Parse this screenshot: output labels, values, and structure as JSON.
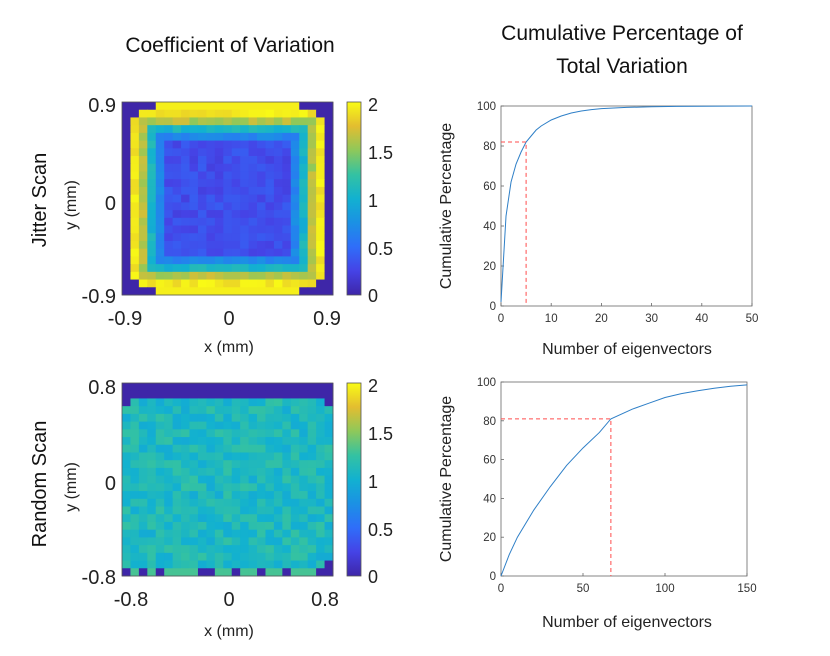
{
  "titles": {
    "left": "Coefficient of Variation",
    "right_line1": "Cumulative Percentage of",
    "right_line2": "Total Variation"
  },
  "row_labels": {
    "top": "Jitter Scan",
    "bottom": "Random Scan"
  },
  "chart_data": [
    {
      "id": "jitter-cv-heatmap",
      "type": "heatmap",
      "title": "Coefficient of Variation",
      "row_label": "Jitter Scan",
      "xlabel": "x (mm)",
      "ylabel": "y (mm)",
      "xlim": [
        -0.9,
        0.9
      ],
      "ylim": [
        -0.9,
        0.9
      ],
      "x_ticks": [
        "-0.9",
        "0",
        "0.9"
      ],
      "y_ticks": [
        "0.9",
        "0",
        "-0.9"
      ],
      "grid_size": [
        25,
        25
      ],
      "colormap": "parula",
      "colorbar": {
        "range": [
          0,
          2
        ],
        "ticks": [
          "2",
          "1.5",
          "1",
          "0.5",
          "0"
        ]
      },
      "pattern": "square ring: ~0 outside, ~2.0 on outer edge, ~1.3 inner ring, ~0.3 in center"
    },
    {
      "id": "jitter-cumulative",
      "type": "line",
      "xlabel": "Number of eigenvectors",
      "ylabel": "Cumulative Percentage",
      "xlim": [
        0,
        50
      ],
      "ylim": [
        0,
        100
      ],
      "x_ticks": [
        0,
        10,
        20,
        30,
        40,
        50
      ],
      "y_ticks": [
        0,
        20,
        40,
        60,
        80,
        100
      ],
      "x": [
        0,
        1,
        2,
        3,
        4,
        5,
        6,
        7,
        8,
        10,
        12,
        14,
        16,
        18,
        20,
        25,
        30,
        35,
        40,
        45,
        50
      ],
      "y": [
        2,
        45,
        62,
        71,
        77,
        82,
        85,
        88,
        90,
        93,
        95,
        96.5,
        97.5,
        98.2,
        98.7,
        99.3,
        99.6,
        99.8,
        99.9,
        99.95,
        100
      ],
      "reference": {
        "x": 5,
        "y": 82,
        "color": "#ff4d4d"
      }
    },
    {
      "id": "random-cv-heatmap",
      "type": "heatmap",
      "row_label": "Random Scan",
      "xlabel": "x (mm)",
      "ylabel": "y (mm)",
      "xlim": [
        -0.8,
        0.8
      ],
      "ylim": [
        -0.8,
        0.8
      ],
      "x_ticks": [
        "-0.8",
        "0",
        "0.8"
      ],
      "y_ticks": [
        "0.8",
        "0",
        "-0.8"
      ],
      "grid_size": [
        25,
        25
      ],
      "colormap": "parula",
      "colorbar": {
        "range": [
          0,
          2
        ],
        "ticks": [
          "2",
          "1.5",
          "1",
          "0.5",
          "0"
        ]
      },
      "pattern": "nearly uniform ~0.9-1.2, ~0 in top rows and corners"
    },
    {
      "id": "random-cumulative",
      "type": "line",
      "xlabel": "Number of eigenvectors",
      "ylabel": "Cumulative Percentage",
      "xlim": [
        0,
        150
      ],
      "ylim": [
        0,
        100
      ],
      "x_ticks": [
        0,
        50,
        100,
        150
      ],
      "y_ticks": [
        0,
        20,
        40,
        60,
        80,
        100
      ],
      "x": [
        0,
        5,
        10,
        20,
        30,
        40,
        50,
        60,
        67,
        80,
        90,
        100,
        110,
        120,
        130,
        140,
        150
      ],
      "y": [
        0,
        11,
        20,
        34,
        46,
        57,
        66,
        74,
        81,
        86,
        89,
        92,
        94,
        95.5,
        96.8,
        97.8,
        98.5
      ],
      "reference": {
        "x": 67,
        "y": 81,
        "color": "#ff4d4d"
      }
    }
  ]
}
